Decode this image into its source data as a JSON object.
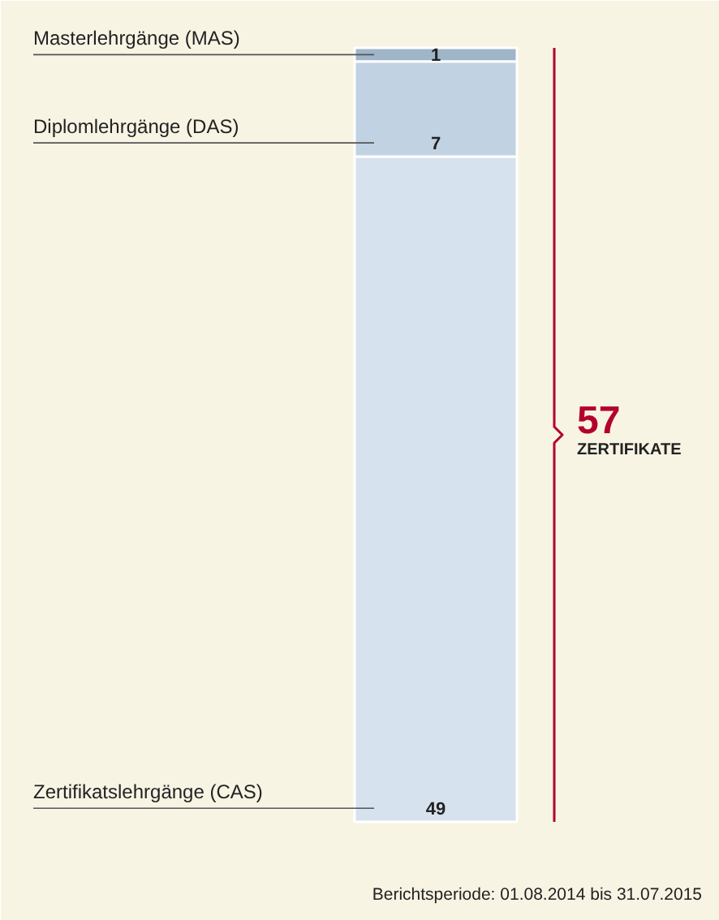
{
  "chart_data": {
    "type": "bar",
    "stacked": true,
    "categories": [
      null
    ],
    "data_labels": true,
    "series": [
      {
        "name": "Zertifikatslehrgänge (CAS)",
        "color": "#d6e2ee",
        "values": [
          49
        ]
      },
      {
        "name": "Diplomlehrgänge (DAS)",
        "color": "#c1d2e2",
        "values": [
          7
        ]
      },
      {
        "name": "Masterlehrgänge (MAS)",
        "color": "#9fb5c8",
        "values": [
          1
        ]
      }
    ],
    "totals": [
      "57"
    ],
    "annotations": [
      "ZERTIFIKATE",
      "Berichtsperiode: 01.08.2014 bis 31.07.2015"
    ]
  }
}
